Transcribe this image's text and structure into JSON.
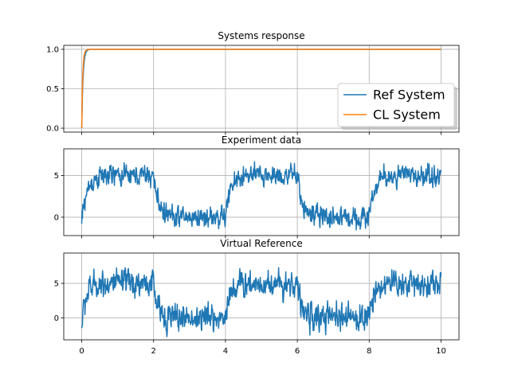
{
  "chart_data": [
    {
      "type": "line",
      "title": "Systems response",
      "xlim": [
        -0.5,
        10.5
      ],
      "ylim": [
        -0.05,
        1.05
      ],
      "yticks": [
        0.0,
        0.5,
        1.0
      ],
      "ytick_labels": [
        "0.0",
        "0.5",
        "1.0"
      ],
      "xticks": [
        0,
        2,
        4,
        6,
        8,
        10
      ],
      "grid": true,
      "legend": {
        "placement": "lower-right",
        "entries": [
          "Ref System",
          "CL System"
        ]
      },
      "series": [
        {
          "name": "Ref System",
          "color": "#1f77b4",
          "model": "step",
          "final_value": 1.0,
          "rise_time": 0.08,
          "overshoot": 0.0
        },
        {
          "name": "CL System",
          "color": "#ff7f0e",
          "model": "step",
          "final_value": 1.0,
          "rise_time": 0.06,
          "overshoot": 0.02
        }
      ],
      "x_range": [
        0,
        10
      ]
    },
    {
      "type": "line",
      "title": "Experiment data",
      "xlim": [
        -0.5,
        10.5
      ],
      "ylim": [
        -2.2,
        8.2
      ],
      "yticks": [
        0,
        5
      ],
      "ytick_labels": [
        "0",
        "5"
      ],
      "xticks": [
        0,
        2,
        4,
        6,
        8,
        10
      ],
      "grid": true,
      "series": [
        {
          "name": "",
          "color": "#1f77b4",
          "model": "square_wave",
          "x_range": [
            0,
            10
          ],
          "period": 4,
          "high": 5,
          "low": 0,
          "time_constant": 0.15,
          "noise_amplitude": 0.9,
          "start_value": -0.8
        }
      ]
    },
    {
      "type": "line",
      "title": "Virtual Reference",
      "xlim": [
        -0.5,
        10.5
      ],
      "ylim": [
        -3.2,
        9.4
      ],
      "yticks": [
        0,
        5
      ],
      "ytick_labels": [
        "0",
        "5"
      ],
      "xticks": [
        0,
        2,
        4,
        6,
        8,
        10
      ],
      "xtick_labels": [
        "0",
        "2",
        "4",
        "6",
        "8",
        "10"
      ],
      "grid": true,
      "series": [
        {
          "name": "",
          "color": "#1f77b4",
          "model": "square_wave",
          "x_range": [
            0,
            10
          ],
          "period": 4,
          "high": 5,
          "low": 0,
          "time_constant": 0.12,
          "noise_amplitude": 1.4,
          "start_value": -1.5
        }
      ]
    }
  ]
}
